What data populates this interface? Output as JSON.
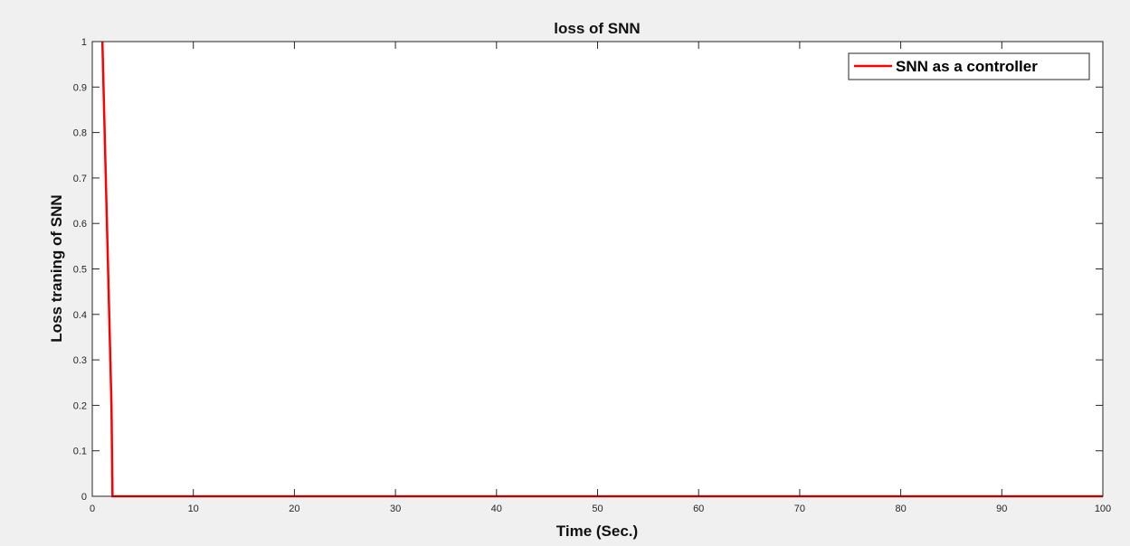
{
  "chart_data": {
    "type": "line",
    "title": "loss  of SNN",
    "xlabel": "Time (Sec.)",
    "ylabel": "Loss traning  of  SNN",
    "xlim": [
      0,
      100
    ],
    "ylim": [
      0,
      1
    ],
    "xticks": [
      0,
      10,
      20,
      30,
      40,
      50,
      60,
      70,
      80,
      90,
      100
    ],
    "yticks": [
      0,
      0.1,
      0.2,
      0.3,
      0.4,
      0.5,
      0.6,
      0.7,
      0.8,
      0.9,
      1
    ],
    "grid": false,
    "legend_position": "top-right",
    "series": [
      {
        "name": "SNN  as a controller",
        "color": "#ff0000",
        "x": [
          1,
          1.9,
          2,
          100
        ],
        "y": [
          1,
          0.2,
          0,
          0
        ]
      }
    ]
  }
}
